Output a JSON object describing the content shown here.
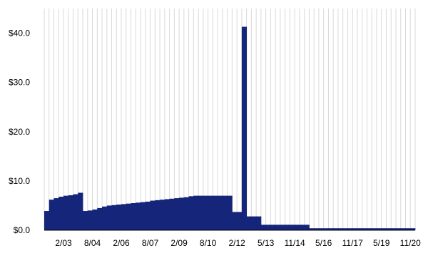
{
  "chart_data": {
    "type": "bar",
    "title": "",
    "xlabel": "",
    "ylabel": "",
    "ylim": [
      0,
      45
    ],
    "grid": {
      "vertical": true,
      "horizontal": false
    },
    "bar_color": "#14257a",
    "grid_color": "#d9d9d9",
    "y_tick_labels": [
      {
        "value": 0,
        "label": "$0.0"
      },
      {
        "value": 10,
        "label": "$10.0"
      },
      {
        "value": 20,
        "label": "$20.0"
      },
      {
        "value": 30,
        "label": "$30.0"
      },
      {
        "value": 40,
        "label": "$40.0"
      }
    ],
    "x_tick_labels": [
      {
        "after_period": 4,
        "label": "2/03"
      },
      {
        "after_period": 10,
        "label": "8/04"
      },
      {
        "after_period": 16,
        "label": "2/06"
      },
      {
        "after_period": 22,
        "label": "8/07"
      },
      {
        "after_period": 28,
        "label": "2/09"
      },
      {
        "after_period": 34,
        "label": "8/10"
      },
      {
        "after_period": 40,
        "label": "2/12"
      },
      {
        "after_period": 46,
        "label": "5/13"
      },
      {
        "after_period": 52,
        "label": "11/14"
      },
      {
        "after_period": 58,
        "label": "5/16"
      },
      {
        "after_period": 64,
        "label": "11/17"
      },
      {
        "after_period": 70,
        "label": "5/19"
      },
      {
        "after_period": 76,
        "label": "11/20"
      }
    ],
    "series": [
      {
        "values": [
          3.9,
          6.2,
          6.5,
          6.8,
          7.0,
          7.1,
          7.3,
          7.6,
          3.9,
          4.0,
          4.2,
          4.5,
          4.8,
          5.0,
          5.1,
          5.2,
          5.3,
          5.4,
          5.5,
          5.6,
          5.7,
          5.8,
          6.0,
          6.1,
          6.2,
          6.3,
          6.4,
          6.5,
          6.6,
          6.7,
          6.9,
          7.0,
          7.0,
          7.0,
          7.0,
          7.0,
          7.0,
          7.0,
          7.0,
          3.7,
          3.7,
          41.3,
          2.8,
          2.8,
          2.8,
          1.1,
          1.1,
          1.1,
          1.1,
          1.1,
          1.1,
          1.1,
          1.1,
          1.1,
          1.1,
          0.4,
          0.4,
          0.4,
          0.4,
          0.4,
          0.4,
          0.4,
          0.4,
          0.4,
          0.4,
          0.4,
          0.4,
          0.4,
          0.4,
          0.4,
          0.4,
          0.4,
          0.4,
          0.4,
          0.4,
          0.4,
          0.4
        ]
      }
    ]
  }
}
